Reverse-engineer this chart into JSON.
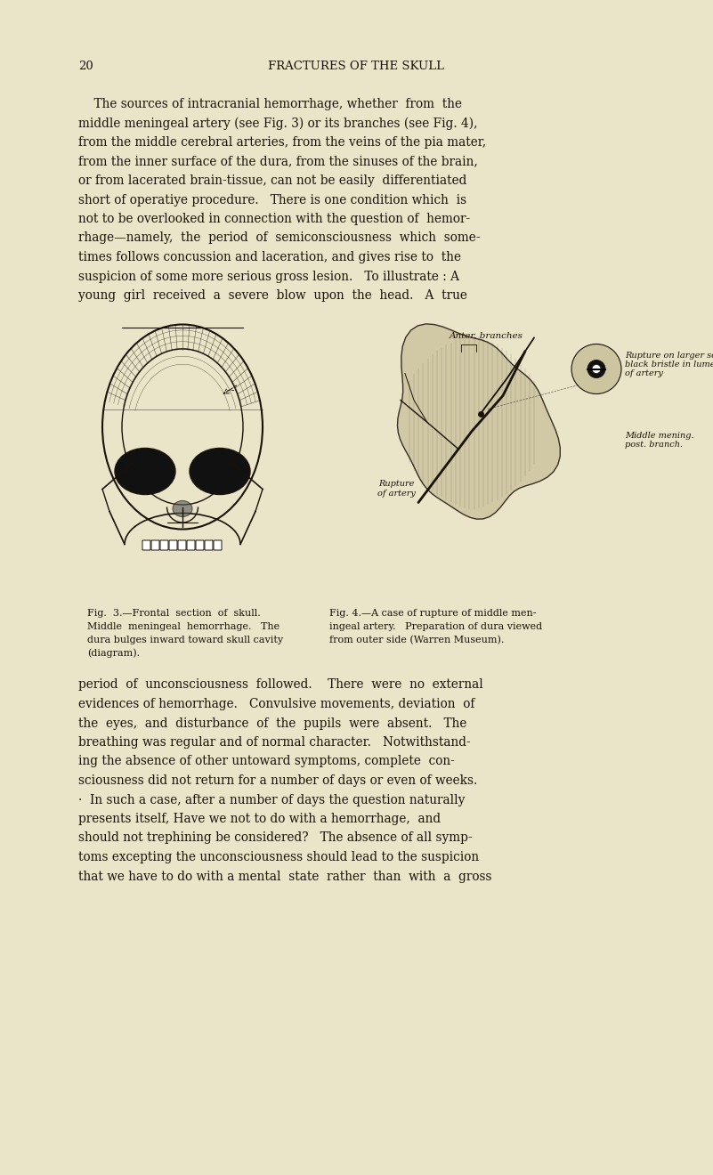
{
  "bg_color": "#EAE4C8",
  "page_number": "20",
  "header": "FRACTURES OF THE SKULL",
  "text_color": "#1a1208",
  "font_family": "serif",
  "header_fontsize": 9.5,
  "body_fontsize": 9.8,
  "caption_fontsize": 8.0,
  "fig_label_fontsize": 7.5,
  "page_width": 8.01,
  "page_height": 13.2,
  "para1_lines": [
    "    The sources of intracranial hemorrhage, whether  from  the",
    "middle meningeal artery (see Fig. 3) or its branches (see Fig. 4),",
    "from the middle cerebral arteries, from the veins of the pia mater,",
    "from the inner surface of the dura, from the sinuses of the brain,",
    "or from lacerated brain-tissue, can not be easily  differentiated",
    "short of operatiye procedure.   There is one condition which  is",
    "not to be overlooked in connection with the question of  hemor-",
    "rhage—namely,  the  period  of  semiconsciousness  which  some-",
    "times follows concussion and laceration, and gives rise to  the",
    "suspicion of some more serious gross lesion.   To illustrate : A",
    "young  girl  received  a  severe  blow  upon  the  head.   A  true"
  ],
  "fig3_caption_lines": [
    "Fig.  3.—Frontal  section  of  skull.",
    "Middle  meningeal  hemorrhage.   The",
    "dura bulges inward toward skull cavity",
    "(diagram)."
  ],
  "fig4_caption_lines": [
    "Fig. 4.—A case of rupture of middle men-",
    "ingeal artery.   Preparation of dura viewed",
    "from outer side (Warren Museum)."
  ],
  "para2_lines": [
    "period  of  unconsciousness  followed.    There  were  no  external",
    "evidences of hemorrhage.   Convulsive movements, deviation  of",
    "the  eyes,  and  disturbance  of  the  pupils  were  absent.   The",
    "breathing was regular and of normal character.   Notwithstand-",
    "ing the absence of other untoward symptoms, complete  con-",
    "sciousness did not return for a number of days or even of weeks.",
    "·  In such a case, after a number of days the question naturally",
    "presents itself, Have we not to do with a hemorrhage,  and",
    "should not trephining be considered?   The absence of all symp-",
    "toms excepting the unconsciousness should lead to the suspicion",
    "that we have to do with a mental  state  rather  than  with  a  gross"
  ]
}
